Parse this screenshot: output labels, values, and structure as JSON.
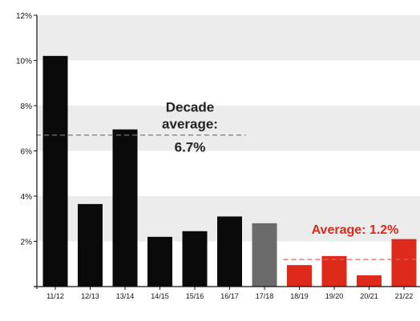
{
  "chart_data": {
    "type": "bar",
    "categories": [
      "11/12",
      "12/13",
      "13/14",
      "14/15",
      "15/16",
      "16/17",
      "17/18",
      "18/19",
      "19/20",
      "20/21",
      "21/22"
    ],
    "values": [
      10.2,
      3.65,
      6.95,
      2.2,
      2.45,
      3.1,
      2.8,
      0.95,
      1.35,
      0.5,
      2.1
    ],
    "bar_colors": [
      "#0a0a0a",
      "#0a0a0a",
      "#0a0a0a",
      "#0a0a0a",
      "#0a0a0a",
      "#0a0a0a",
      "#6b6b6b",
      "#dd2a1b",
      "#dd2a1b",
      "#dd2a1b",
      "#dd2a1b"
    ],
    "ylim": [
      0,
      12
    ],
    "yticks": [
      {
        "value": 2,
        "label": "2%"
      },
      {
        "value": 4,
        "label": "4%"
      },
      {
        "value": 6,
        "label": "6%"
      },
      {
        "value": 8,
        "label": "8%"
      },
      {
        "value": 10,
        "label": "10%"
      },
      {
        "value": 12,
        "label": "12%"
      }
    ],
    "grid": "alternating horizontal bands",
    "title": "",
    "xlabel": "",
    "ylabel": "",
    "annotations": [
      {
        "lines": [
          "Decade",
          "average:",
          "6.7%"
        ],
        "value": 6.7,
        "color": "#222222",
        "line_color": "#777777",
        "from_category": 0,
        "to_category": 5
      },
      {
        "lines": [
          "Average: 1.2%"
        ],
        "value": 1.2,
        "color": "#dd2a1b",
        "line_color": "#e8615a",
        "from_category": 7,
        "to_category": 10
      }
    ]
  }
}
